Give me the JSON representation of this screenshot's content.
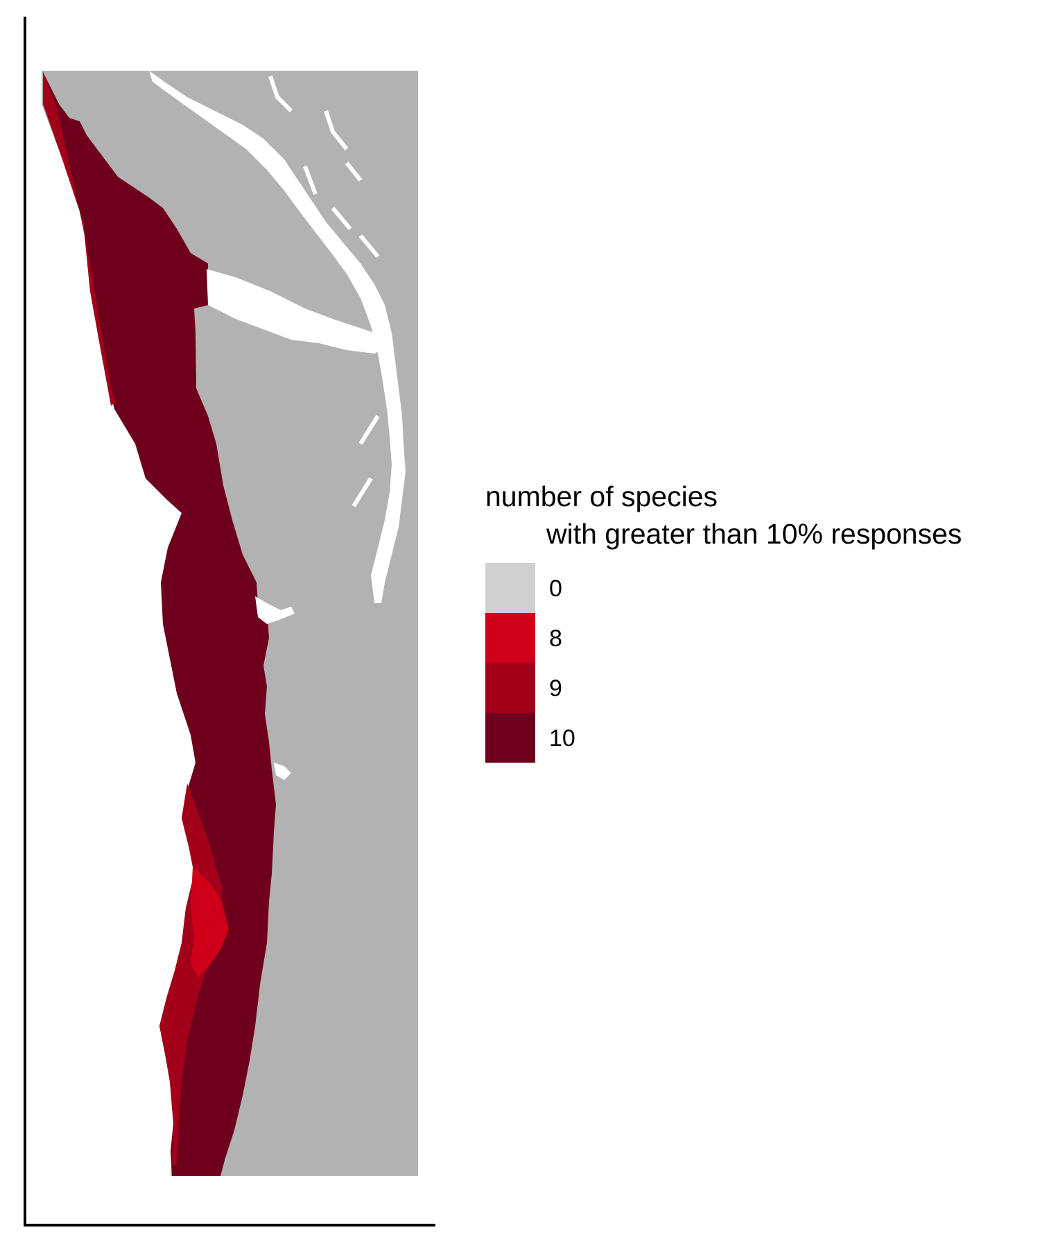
{
  "legend": {
    "title_line1": "number of species",
    "title_line2": "with greater than 10% responses",
    "items": [
      {
        "label": "0",
        "color": "#d0d0d0"
      },
      {
        "label": "8",
        "color": "#cf0018"
      },
      {
        "label": "9",
        "color": "#a30019"
      },
      {
        "label": "10",
        "color": "#6f001c"
      }
    ]
  },
  "colors": {
    "land": "#b2b2b2",
    "water": "#ffffff",
    "axis": "#000000"
  }
}
